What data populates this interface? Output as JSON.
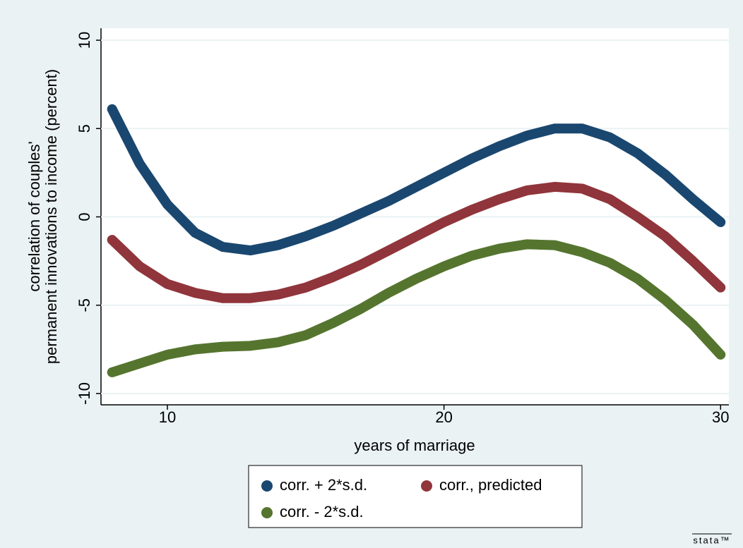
{
  "chart_data": {
    "type": "line",
    "x_label": "years of marriage",
    "y_label": [
      "correlation of couples'",
      "permanent innovations to income (percent)"
    ],
    "x": [
      8,
      9,
      10,
      11,
      12,
      13,
      14,
      15,
      16,
      17,
      18,
      19,
      20,
      21,
      22,
      23,
      24,
      25,
      26,
      27,
      28,
      29,
      30
    ],
    "series": [
      {
        "name": "corr. + 2*s.d.",
        "color": "#1a476f",
        "values": [
          6.1,
          3.0,
          0.7,
          -0.9,
          -1.7,
          -1.9,
          -1.6,
          -1.1,
          -0.5,
          0.2,
          0.9,
          1.7,
          2.5,
          3.3,
          4.0,
          4.6,
          5.0,
          5.0,
          4.5,
          3.6,
          2.4,
          1.0,
          -0.3
        ]
      },
      {
        "name": "corr., predicted",
        "color": "#90353b",
        "values": [
          -1.3,
          -2.8,
          -3.8,
          -4.3,
          -4.6,
          -4.6,
          -4.4,
          -4.0,
          -3.4,
          -2.7,
          -1.9,
          -1.1,
          -0.3,
          0.4,
          1.0,
          1.5,
          1.7,
          1.6,
          1.0,
          0.0,
          -1.1,
          -2.5,
          -4.0
        ]
      },
      {
        "name": "corr. - 2*s.d.",
        "color": "#55752f",
        "values": [
          -8.8,
          -8.3,
          -7.8,
          -7.5,
          -7.35,
          -7.3,
          -7.1,
          -6.7,
          -6.0,
          -5.2,
          -4.3,
          -3.5,
          -2.8,
          -2.2,
          -1.8,
          -1.55,
          -1.6,
          -2.0,
          -2.6,
          -3.5,
          -4.7,
          -6.1,
          -7.8
        ]
      }
    ],
    "xlim": [
      7.6,
      30.3
    ],
    "xticks": [
      10,
      20,
      30
    ],
    "ylim": [
      -10.64,
      10.68
    ],
    "yticks": [
      10,
      5,
      0,
      -5,
      -10
    ],
    "grid": true,
    "watermark": "stata™"
  }
}
